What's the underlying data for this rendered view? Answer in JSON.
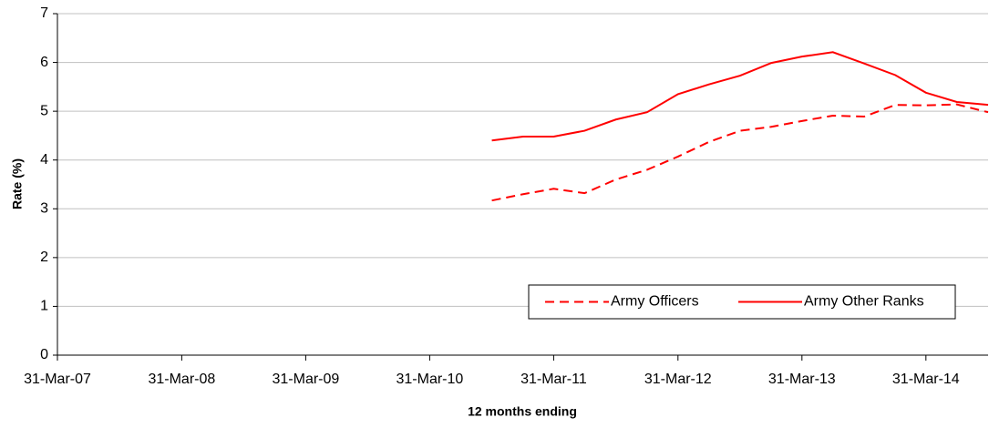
{
  "chart_data": {
    "type": "line",
    "x_label": "12 months ending",
    "y_label": "Rate (%)",
    "x": [
      "2010-09-30",
      "2010-12-31",
      "2011-03-31",
      "2011-06-30",
      "2011-09-30",
      "2011-12-31",
      "2012-03-31",
      "2012-06-30",
      "2012-09-30",
      "2012-12-31",
      "2013-03-31",
      "2013-06-30",
      "2013-09-30",
      "2013-12-31",
      "2014-03-31",
      "2014-06-30",
      "2014-09-30"
    ],
    "series": [
      {
        "name": "Army Officers",
        "color": "#ff0000",
        "dash": true,
        "values": [
          3.17,
          3.3,
          3.41,
          3.32,
          3.6,
          3.8,
          4.07,
          4.37,
          4.6,
          4.68,
          4.8,
          4.91,
          4.89,
          5.13,
          5.12,
          5.14,
          4.98
        ]
      },
      {
        "name": "Army Other Ranks",
        "color": "#ff0000",
        "dash": false,
        "values": [
          4.4,
          4.48,
          4.48,
          4.6,
          4.83,
          4.98,
          5.35,
          5.55,
          5.73,
          5.99,
          6.12,
          6.21,
          5.98,
          5.74,
          5.38,
          5.19,
          5.13
        ]
      }
    ],
    "xlim": [
      "2007-03-31",
      "2014-09-30"
    ],
    "xticks": [
      {
        "value": "2007-03-31",
        "label": "31-Mar-07"
      },
      {
        "value": "2008-03-31",
        "label": "31-Mar-08"
      },
      {
        "value": "2009-03-31",
        "label": "31-Mar-09"
      },
      {
        "value": "2010-03-31",
        "label": "31-Mar-10"
      },
      {
        "value": "2011-03-31",
        "label": "31-Mar-11"
      },
      {
        "value": "2012-03-31",
        "label": "31-Mar-12"
      },
      {
        "value": "2013-03-31",
        "label": "31-Mar-13"
      },
      {
        "value": "2014-03-31",
        "label": "31-Mar-14"
      }
    ],
    "ylim": [
      0,
      7
    ],
    "yticks": [
      0,
      1,
      2,
      3,
      4,
      5,
      6,
      7
    ],
    "grid": true,
    "legend": "lower right"
  }
}
